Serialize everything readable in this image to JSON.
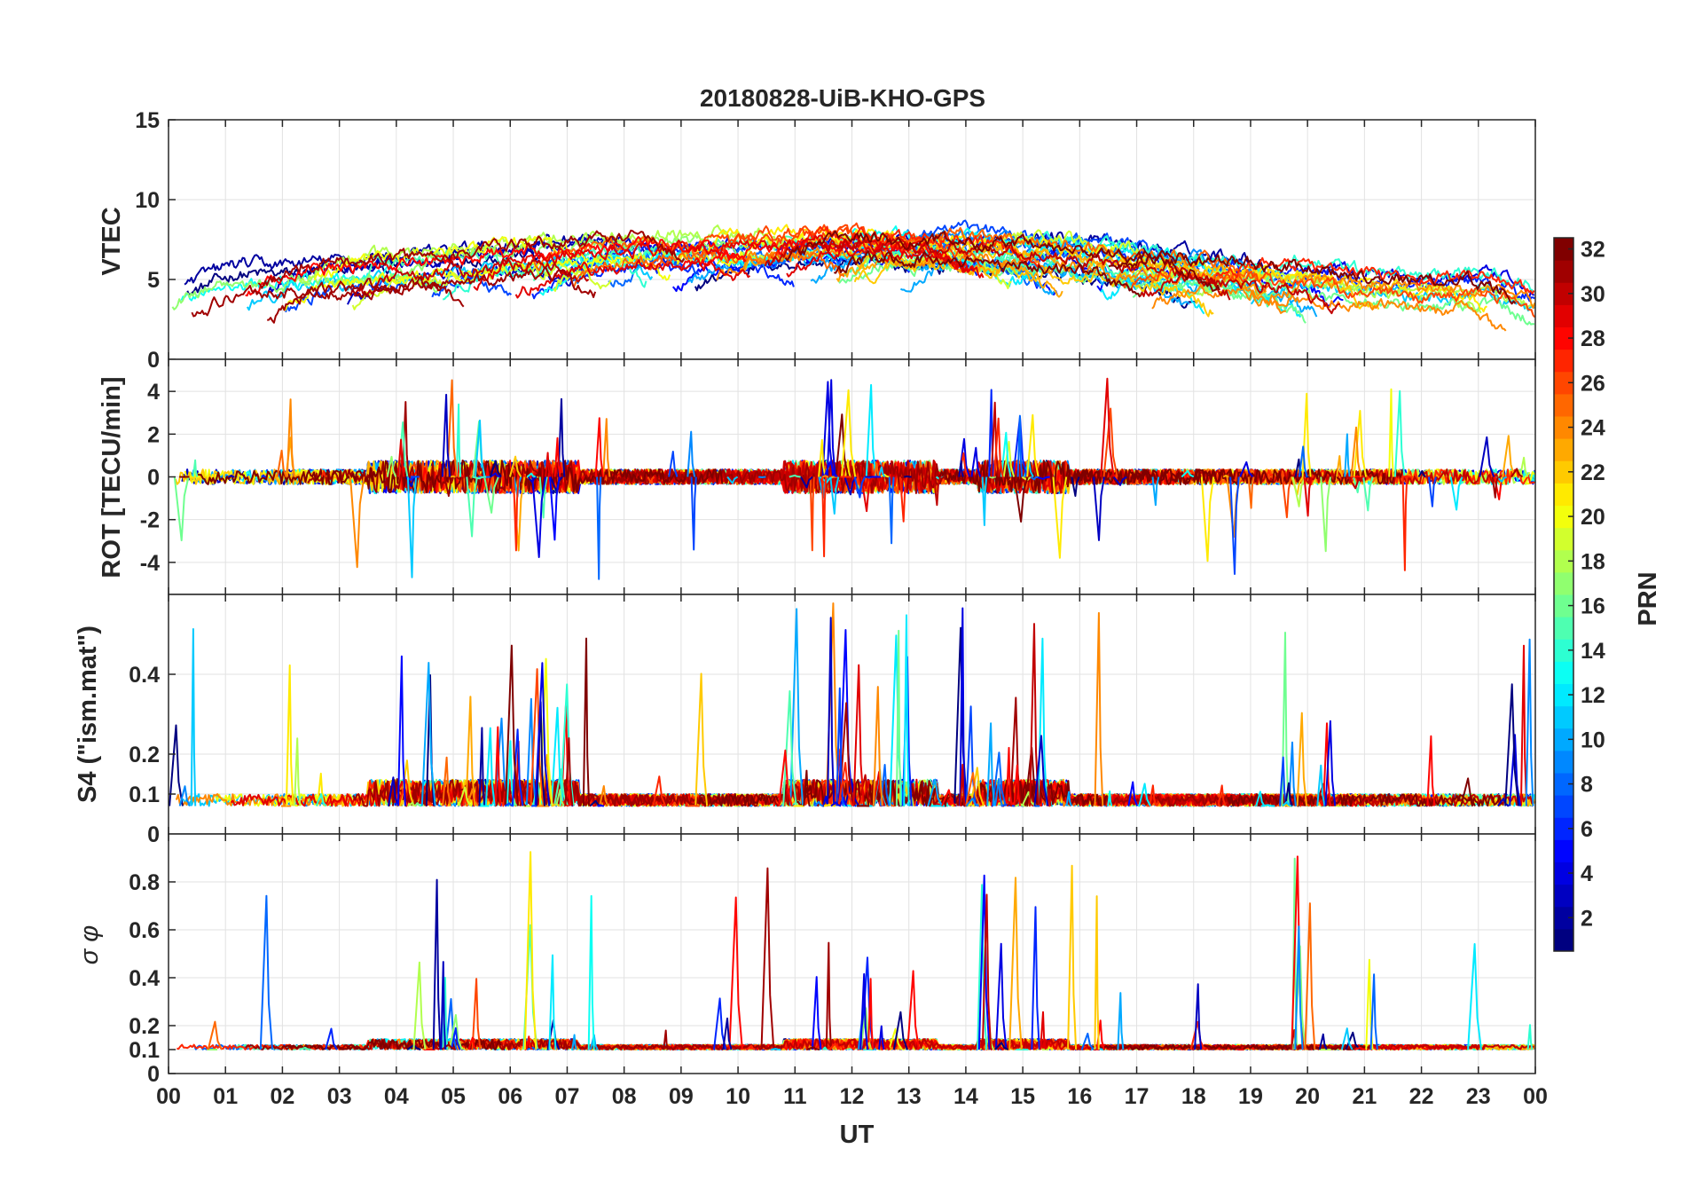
{
  "chart_data": [
    {
      "type": "line",
      "title": "20180828-UiB-KHO-GPS",
      "ylabel": "VTEC",
      "ylim": [
        0,
        15
      ],
      "yticks": [
        0,
        5,
        10,
        15
      ],
      "ytick_labels": [
        "0",
        "5",
        "10",
        "15"
      ],
      "xlim": [
        0,
        24
      ],
      "series_count": 32,
      "series_label": "PRN 1-32",
      "profile": {
        "hours": [
          0,
          2,
          4,
          6,
          8,
          10,
          11,
          12,
          13,
          14,
          15,
          16,
          18,
          20,
          22,
          23,
          24
        ],
        "values": [
          5.0,
          5.0,
          5.5,
          6.2,
          6.8,
          7.0,
          7.2,
          7.3,
          7.0,
          6.9,
          6.7,
          6.3,
          5.5,
          4.9,
          4.1,
          4.3,
          4.5
        ]
      },
      "noise_amp": 0.6,
      "spread": 1.2
    },
    {
      "type": "line",
      "ylabel": "ROT [TECU/min]",
      "ylim": [
        -5.5,
        5.5
      ],
      "yticks": [
        -4,
        -2,
        0,
        2,
        4
      ],
      "ytick_labels": [
        "-4",
        "-2",
        "0",
        "2",
        "4"
      ],
      "xlim": [
        0,
        24
      ],
      "series_count": 32,
      "baseline": 0,
      "noise_amp": 0.35,
      "spike_count": 160,
      "spike_max": 4.8
    },
    {
      "type": "line",
      "ylabel": "S4 (\"ism.mat\")",
      "ylim": [
        0,
        0.6
      ],
      "yticks": [
        0.1,
        0.2,
        0.4
      ],
      "ytick_labels": [
        "0.1",
        "0.2",
        "0.4"
      ],
      "xlim": [
        0,
        24
      ],
      "series_count": 32,
      "baseline": 0.07,
      "noise_amp": 0.03,
      "spike_count": 150,
      "spike_max": 0.58
    },
    {
      "type": "line",
      "ylabel": "σ φ",
      "ylim": [
        0,
        1
      ],
      "yticks": [
        0,
        0.1,
        0.2,
        0.4,
        0.6,
        0.8
      ],
      "ytick_labels": [
        "0",
        "0.1",
        "0.2",
        "0.4",
        "0.6",
        "0.8"
      ],
      "top_tick_label": "0",
      "xlim": [
        0,
        24
      ],
      "series_count": 32,
      "baseline": 0.1,
      "noise_amp": 0.02,
      "spike_count": 90,
      "spike_max": 1.0
    }
  ],
  "xaxis": {
    "label": "UT",
    "ticks": [
      "00",
      "01",
      "02",
      "03",
      "04",
      "05",
      "06",
      "07",
      "08",
      "09",
      "10",
      "11",
      "12",
      "13",
      "14",
      "15",
      "16",
      "17",
      "18",
      "19",
      "20",
      "21",
      "22",
      "23",
      "00"
    ]
  },
  "colorbar": {
    "label": "PRN",
    "range": [
      1,
      32
    ],
    "ticks": [
      "2",
      "4",
      "6",
      "8",
      "10",
      "12",
      "14",
      "16",
      "18",
      "20",
      "22",
      "24",
      "26",
      "28",
      "30",
      "32"
    ],
    "colormap": "jet"
  },
  "colors": {
    "axis": "#262626",
    "grid": "#e2e2e2"
  }
}
